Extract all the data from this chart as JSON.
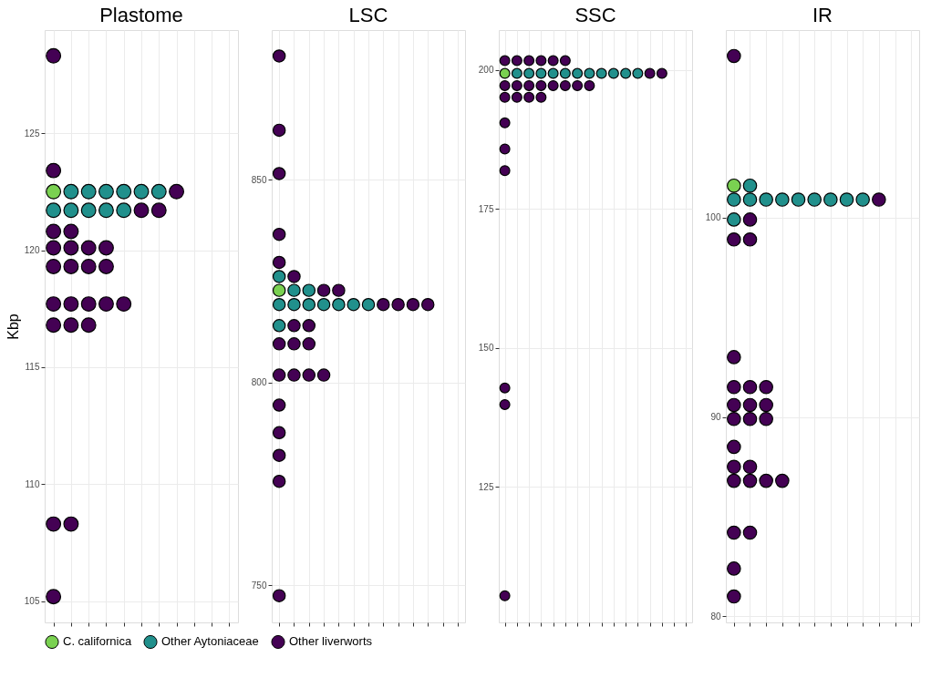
{
  "chart_data": [
    {
      "type": "scatter",
      "title": "Plastome",
      "ylabel": "Kbp",
      "categories": [
        null,
        null,
        null,
        null,
        null,
        null,
        null,
        null,
        null,
        null,
        null
      ],
      "ylim": [
        104.1,
        129.4
      ],
      "yticks": [
        105,
        110,
        115,
        120,
        125
      ],
      "tick_labels": "y",
      "grid": true,
      "legend": "bottom",
      "marker": "circle",
      "series": [
        {
          "name": "C. californica",
          "color": "#7ad151",
          "values": [
            122.5,
            null,
            null,
            null,
            null,
            null,
            null,
            null,
            null,
            null,
            null
          ]
        },
        {
          "name": "Other Aytoniaceae",
          "color": "#21908c",
          "values": [
            null,
            122.5,
            122.5,
            122.5,
            122.5,
            122.5,
            122.5,
            null,
            null,
            null,
            null
          ]
        },
        {
          "color": "#21908c",
          "values": [
            121.7,
            121.7,
            121.7,
            121.7,
            121.7,
            null,
            null,
            null,
            null,
            null,
            null
          ]
        },
        {
          "name": "Other liverworts",
          "color": "#440154",
          "values": [
            128.3,
            null,
            null,
            null,
            null,
            null,
            null,
            null,
            null,
            null,
            null
          ]
        },
        {
          "color": "#440154",
          "values": [
            123.4,
            null,
            null,
            null,
            null,
            null,
            null,
            null,
            null,
            null,
            null
          ]
        },
        {
          "color": "#440154",
          "values": [
            null,
            null,
            null,
            null,
            null,
            null,
            null,
            122.5,
            null,
            null,
            null
          ]
        },
        {
          "color": "#440154",
          "values": [
            null,
            null,
            null,
            null,
            null,
            121.7,
            121.7,
            null,
            null,
            null,
            null
          ]
        },
        {
          "color": "#440154",
          "values": [
            120.8,
            120.8,
            null,
            null,
            null,
            null,
            null,
            null,
            null,
            null,
            null
          ]
        },
        {
          "color": "#440154",
          "values": [
            120.1,
            120.1,
            120.1,
            120.1,
            null,
            null,
            null,
            null,
            null,
            null,
            null
          ]
        },
        {
          "color": "#440154",
          "values": [
            119.3,
            119.3,
            119.3,
            119.3,
            null,
            null,
            null,
            null,
            null,
            null,
            null
          ]
        },
        {
          "color": "#440154",
          "values": [
            117.7,
            117.7,
            117.7,
            117.7,
            117.7,
            null,
            null,
            null,
            null,
            null,
            null
          ]
        },
        {
          "color": "#440154",
          "values": [
            116.8,
            116.8,
            116.8,
            null,
            null,
            null,
            null,
            null,
            null,
            null,
            null
          ]
        },
        {
          "color": "#440154",
          "values": [
            108.3,
            108.3,
            null,
            null,
            null,
            null,
            null,
            null,
            null,
            null,
            null
          ]
        },
        {
          "color": "#440154",
          "values": [
            105.2,
            null,
            null,
            null,
            null,
            null,
            null,
            null,
            null,
            null,
            null
          ]
        }
      ]
    },
    {
      "type": "scatter",
      "title": "LSC",
      "categories": [
        null,
        null,
        null,
        null,
        null,
        null,
        null,
        null,
        null,
        null,
        null,
        null,
        null
      ],
      "ylim": [
        740.8,
        886.9
      ],
      "yticks": [
        750,
        800,
        850
      ],
      "tick_labels": "y",
      "grid": true,
      "marker": "circle",
      "series": [
        {
          "color": "#7ad151",
          "values": [
            822.7,
            null,
            null,
            null,
            null,
            null,
            null,
            null,
            null,
            null,
            null,
            null,
            null
          ]
        },
        {
          "color": "#21908c",
          "values": [
            826.1,
            null,
            null,
            null,
            null,
            null,
            null,
            null,
            null,
            null,
            null,
            null,
            null
          ]
        },
        {
          "color": "#21908c",
          "values": [
            null,
            822.7,
            822.7,
            null,
            null,
            null,
            null,
            null,
            null,
            null,
            null,
            null,
            null
          ]
        },
        {
          "color": "#21908c",
          "values": [
            819.2,
            819.2,
            819.2,
            819.2,
            819.2,
            819.2,
            819.2,
            null,
            null,
            null,
            null,
            null,
            null
          ]
        },
        {
          "color": "#21908c",
          "values": [
            814.0,
            null,
            null,
            null,
            null,
            null,
            null,
            null,
            null,
            null,
            null,
            null,
            null
          ]
        },
        {
          "color": "#440154",
          "values": [
            880.5,
            null,
            null,
            null,
            null,
            null,
            null,
            null,
            null,
            null,
            null,
            null,
            null
          ]
        },
        {
          "color": "#440154",
          "values": [
            862.2,
            null,
            null,
            null,
            null,
            null,
            null,
            null,
            null,
            null,
            null,
            null,
            null
          ]
        },
        {
          "color": "#440154",
          "values": [
            851.5,
            null,
            null,
            null,
            null,
            null,
            null,
            null,
            null,
            null,
            null,
            null,
            null
          ]
        },
        {
          "color": "#440154",
          "values": [
            836.5,
            null,
            null,
            null,
            null,
            null,
            null,
            null,
            null,
            null,
            null,
            null,
            null
          ]
        },
        {
          "color": "#440154",
          "values": [
            829.6,
            null,
            null,
            null,
            null,
            null,
            null,
            null,
            null,
            null,
            null,
            null,
            null
          ]
        },
        {
          "color": "#440154",
          "values": [
            null,
            826.1,
            null,
            null,
            null,
            null,
            null,
            null,
            null,
            null,
            null,
            null,
            null
          ]
        },
        {
          "color": "#440154",
          "values": [
            null,
            null,
            null,
            822.7,
            822.7,
            null,
            null,
            null,
            null,
            null,
            null,
            null,
            null
          ]
        },
        {
          "color": "#440154",
          "values": [
            null,
            null,
            null,
            null,
            null,
            null,
            null,
            819.2,
            819.2,
            819.2,
            819.2,
            null,
            null
          ]
        },
        {
          "color": "#440154",
          "values": [
            null,
            814.0,
            814.0,
            null,
            null,
            null,
            null,
            null,
            null,
            null,
            null,
            null,
            null
          ]
        },
        {
          "color": "#440154",
          "values": [
            809.5,
            809.5,
            809.5,
            null,
            null,
            null,
            null,
            null,
            null,
            null,
            null,
            null,
            null
          ]
        },
        {
          "color": "#440154",
          "values": [
            801.8,
            801.8,
            801.8,
            801.8,
            null,
            null,
            null,
            null,
            null,
            null,
            null,
            null,
            null
          ]
        },
        {
          "color": "#440154",
          "values": [
            794.4,
            null,
            null,
            null,
            null,
            null,
            null,
            null,
            null,
            null,
            null,
            null,
            null
          ]
        },
        {
          "color": "#440154",
          "values": [
            787.6,
            null,
            null,
            null,
            null,
            null,
            null,
            null,
            null,
            null,
            null,
            null,
            null
          ]
        },
        {
          "color": "#440154",
          "values": [
            782.0,
            null,
            null,
            null,
            null,
            null,
            null,
            null,
            null,
            null,
            null,
            null,
            null
          ]
        },
        {
          "color": "#440154",
          "values": [
            775.6,
            null,
            null,
            null,
            null,
            null,
            null,
            null,
            null,
            null,
            null,
            null,
            null
          ]
        },
        {
          "color": "#440154",
          "values": [
            747.4,
            null,
            null,
            null,
            null,
            null,
            null,
            null,
            null,
            null,
            null,
            null,
            null
          ]
        }
      ]
    },
    {
      "type": "scatter",
      "title": "SSC",
      "categories": [
        null,
        null,
        null,
        null,
        null,
        null,
        null,
        null,
        null,
        null,
        null,
        null,
        null,
        null,
        null,
        null
      ],
      "ylim": [
        100.6,
        207.2
      ],
      "yticks": [
        125,
        150,
        175,
        200
      ],
      "tick_labels": "y",
      "grid": true,
      "marker": "circle",
      "series": [
        {
          "color": "#7ad151",
          "values": [
            199.4,
            null,
            null,
            null,
            null,
            null,
            null,
            null,
            null,
            null,
            null,
            null,
            null,
            null,
            null,
            null
          ]
        },
        {
          "color": "#21908c",
          "values": [
            null,
            199.4,
            199.4,
            199.4,
            199.4,
            199.4,
            199.4,
            199.4,
            199.4,
            199.4,
            199.4,
            199.4,
            null,
            null,
            null,
            null
          ]
        },
        {
          "color": "#440154",
          "values": [
            201.7,
            201.7,
            201.7,
            201.7,
            201.7,
            201.7,
            null,
            null,
            null,
            null,
            null,
            null,
            null,
            null,
            null,
            null
          ]
        },
        {
          "color": "#440154",
          "values": [
            null,
            null,
            null,
            null,
            null,
            null,
            null,
            null,
            null,
            null,
            null,
            null,
            199.4,
            199.4,
            null,
            null
          ]
        },
        {
          "color": "#440154",
          "values": [
            197.2,
            197.2,
            197.2,
            197.2,
            197.2,
            197.2,
            197.2,
            197.2,
            null,
            null,
            null,
            null,
            null,
            null,
            null,
            null
          ]
        },
        {
          "color": "#440154",
          "values": [
            195.1,
            195.1,
            195.1,
            195.1,
            null,
            null,
            null,
            null,
            null,
            null,
            null,
            null,
            null,
            null,
            null,
            null
          ]
        },
        {
          "color": "#440154",
          "values": [
            190.5,
            null,
            null,
            null,
            null,
            null,
            null,
            null,
            null,
            null,
            null,
            null,
            null,
            null,
            null,
            null
          ]
        },
        {
          "color": "#440154",
          "values": [
            185.8,
            null,
            null,
            null,
            null,
            null,
            null,
            null,
            null,
            null,
            null,
            null,
            null,
            null,
            null,
            null
          ]
        },
        {
          "color": "#440154",
          "values": [
            181.9,
            null,
            null,
            null,
            null,
            null,
            null,
            null,
            null,
            null,
            null,
            null,
            null,
            null,
            null,
            null
          ]
        },
        {
          "color": "#440154",
          "values": [
            142.8,
            null,
            null,
            null,
            null,
            null,
            null,
            null,
            null,
            null,
            null,
            null,
            null,
            null,
            null,
            null
          ]
        },
        {
          "color": "#440154",
          "values": [
            139.8,
            null,
            null,
            null,
            null,
            null,
            null,
            null,
            null,
            null,
            null,
            null,
            null,
            null,
            null,
            null
          ]
        },
        {
          "color": "#440154",
          "values": [
            105.4,
            null,
            null,
            null,
            null,
            null,
            null,
            null,
            null,
            null,
            null,
            null,
            null,
            null,
            null,
            null
          ]
        }
      ]
    },
    {
      "type": "scatter",
      "title": "IR",
      "categories": [
        null,
        null,
        null,
        null,
        null,
        null,
        null,
        null,
        null,
        null,
        null,
        null
      ],
      "ylim": [
        79.7,
        109.4
      ],
      "yticks": [
        80,
        90,
        100
      ],
      "tick_labels": "y",
      "grid": true,
      "marker": "circle",
      "series": [
        {
          "color": "#7ad151",
          "values": [
            101.6,
            null,
            null,
            null,
            null,
            null,
            null,
            null,
            null,
            null,
            null,
            null
          ]
        },
        {
          "color": "#21908c",
          "values": [
            null,
            101.6,
            null,
            null,
            null,
            null,
            null,
            null,
            null,
            null,
            null,
            null
          ]
        },
        {
          "color": "#21908c",
          "values": [
            100.9,
            100.9,
            100.9,
            100.9,
            100.9,
            100.9,
            100.9,
            100.9,
            100.9,
            null,
            null,
            null
          ]
        },
        {
          "color": "#21908c",
          "values": [
            99.9,
            null,
            null,
            null,
            null,
            null,
            null,
            null,
            null,
            null,
            null,
            null
          ]
        },
        {
          "color": "#440154",
          "values": [
            108.1,
            null,
            null,
            null,
            null,
            null,
            null,
            null,
            null,
            null,
            null,
            null
          ]
        },
        {
          "color": "#440154",
          "values": [
            null,
            null,
            null,
            null,
            null,
            null,
            null,
            null,
            null,
            100.9,
            null,
            null
          ]
        },
        {
          "color": "#440154",
          "values": [
            null,
            99.9,
            null,
            null,
            null,
            null,
            null,
            null,
            null,
            null,
            null,
            null
          ]
        },
        {
          "color": "#440154",
          "values": [
            98.9,
            98.9,
            null,
            null,
            null,
            null,
            null,
            null,
            null,
            null,
            null,
            null
          ]
        },
        {
          "color": "#440154",
          "values": [
            93.0,
            null,
            null,
            null,
            null,
            null,
            null,
            null,
            null,
            null,
            null,
            null
          ]
        },
        {
          "color": "#440154",
          "values": [
            91.5,
            91.5,
            91.5,
            null,
            null,
            null,
            null,
            null,
            null,
            null,
            null,
            null
          ]
        },
        {
          "color": "#440154",
          "values": [
            90.6,
            90.6,
            90.6,
            null,
            null,
            null,
            null,
            null,
            null,
            null,
            null,
            null
          ]
        },
        {
          "color": "#440154",
          "values": [
            89.9,
            89.9,
            89.9,
            null,
            null,
            null,
            null,
            null,
            null,
            null,
            null,
            null
          ]
        },
        {
          "color": "#440154",
          "values": [
            88.5,
            null,
            null,
            null,
            null,
            null,
            null,
            null,
            null,
            null,
            null,
            null
          ]
        },
        {
          "color": "#440154",
          "values": [
            87.5,
            87.5,
            null,
            null,
            null,
            null,
            null,
            null,
            null,
            null,
            null,
            null
          ]
        },
        {
          "color": "#440154",
          "values": [
            86.8,
            86.8,
            86.8,
            86.8,
            null,
            null,
            null,
            null,
            null,
            null,
            null,
            null
          ]
        },
        {
          "color": "#440154",
          "values": [
            84.2,
            84.2,
            null,
            null,
            null,
            null,
            null,
            null,
            null,
            null,
            null,
            null
          ]
        },
        {
          "color": "#440154",
          "values": [
            82.4,
            null,
            null,
            null,
            null,
            null,
            null,
            null,
            null,
            null,
            null,
            null
          ]
        },
        {
          "color": "#440154",
          "values": [
            81.0,
            null,
            null,
            null,
            null,
            null,
            null,
            null,
            null,
            null,
            null,
            null
          ]
        }
      ]
    }
  ]
}
